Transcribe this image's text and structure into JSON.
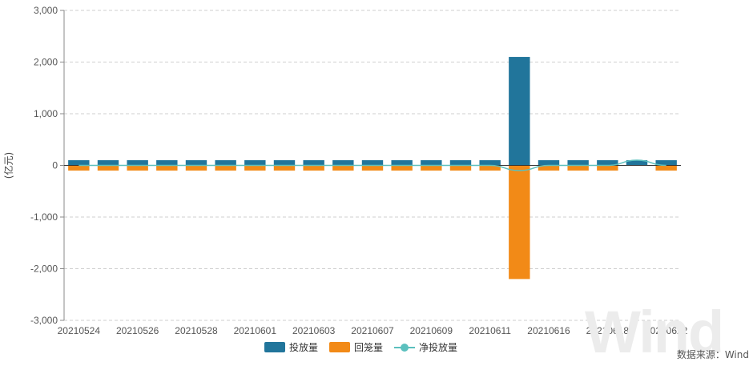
{
  "chart_data": {
    "type": "bar",
    "ylabel": "(亿元)",
    "ylim": [
      -3000,
      3000
    ],
    "yticks": [
      3000,
      2000,
      1000,
      0,
      -1000,
      -2000,
      -3000
    ],
    "ytick_labels": [
      "3,000",
      "2,000",
      "1,000",
      "0",
      "-1,000",
      "-2,000",
      "-3,000"
    ],
    "grid": "horizontal-dashed",
    "legend_placement": "bottom-center",
    "categories": [
      "20210524",
      "20210525",
      "20210526",
      "20210527",
      "20210528",
      "20210531",
      "20210601",
      "20210602",
      "20210603",
      "20210604",
      "20210607",
      "20210608",
      "20210609",
      "20210610",
      "20210611",
      "20210615",
      "20210616",
      "20210617",
      "20210618",
      "20210621",
      "20210622"
    ],
    "xtick_labels": [
      "20210524",
      "20210526",
      "20210528",
      "20210601",
      "20210603",
      "20210607",
      "20210609",
      "20210611",
      "20210616",
      "20210618",
      "20210622"
    ],
    "series": [
      {
        "name": "投放量",
        "kind": "bar",
        "color": "#21759b",
        "values": [
          100,
          100,
          100,
          100,
          100,
          100,
          100,
          100,
          100,
          100,
          100,
          100,
          100,
          100,
          100,
          2100,
          100,
          100,
          100,
          100,
          100
        ]
      },
      {
        "name": "回笼量",
        "kind": "bar",
        "color": "#f28a17",
        "values": [
          -100,
          -100,
          -100,
          -100,
          -100,
          -100,
          -100,
          -100,
          -100,
          -100,
          -100,
          -100,
          -100,
          -100,
          -100,
          -2200,
          -100,
          -100,
          -100,
          0,
          -100
        ]
      },
      {
        "name": "净投放量",
        "kind": "line",
        "color": "#5bc0be",
        "values": [
          0,
          0,
          0,
          0,
          0,
          0,
          0,
          0,
          0,
          0,
          0,
          0,
          0,
          0,
          0,
          -100,
          0,
          0,
          0,
          100,
          0
        ]
      }
    ]
  },
  "source_text": "数据来源：Wind",
  "watermark_text": "Wind"
}
